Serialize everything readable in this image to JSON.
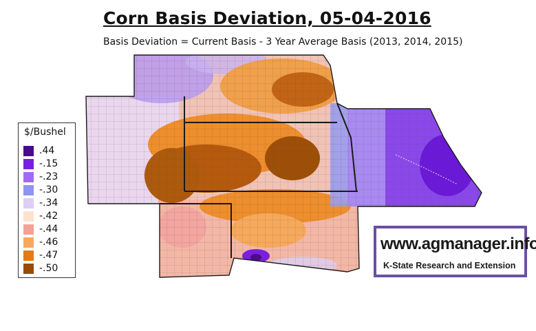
{
  "title": "Corn Basis Deviation, 05-04-2016",
  "subtitle": "Basis Deviation = Current Basis - 3 Year Average Basis (2013, 2014, 2015)",
  "legend": {
    "title": "$/Bushel",
    "items": [
      {
        "label": ".44",
        "color": "#4a0b8a"
      },
      {
        "label": "-.15",
        "color": "#7a1fe0"
      },
      {
        "label": "-.23",
        "color": "#a06bf0"
      },
      {
        "label": "-.30",
        "color": "#8f93f2"
      },
      {
        "label": "-.34",
        "color": "#dccff3"
      },
      {
        "label": "-.42",
        "color": "#fde2cf"
      },
      {
        "label": "-.44",
        "color": "#f4a197"
      },
      {
        "label": "-.46",
        "color": "#f6a95b"
      },
      {
        "label": "-.47",
        "color": "#e57a12"
      },
      {
        "label": "-.50",
        "color": "#9a4b05"
      }
    ]
  },
  "logo": {
    "site": "www.agmanager.info",
    "org": "K-State Research and Extension"
  }
}
